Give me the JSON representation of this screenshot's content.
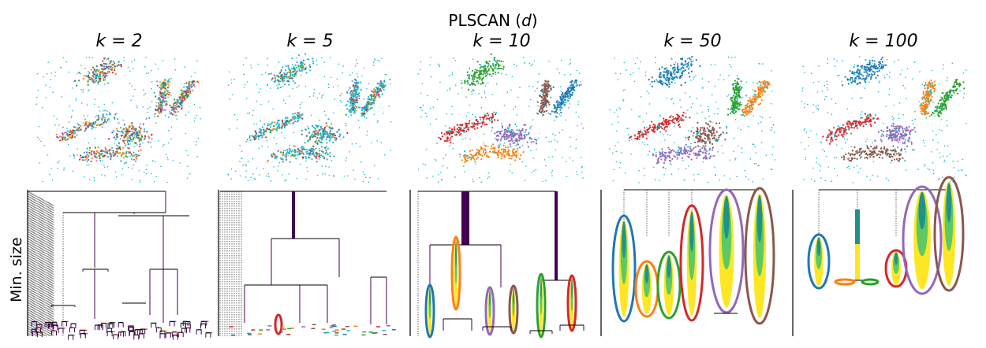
{
  "figure": {
    "title_prefix": "PLSCAN (",
    "title_var": "d",
    "title_suffix": ")",
    "ylabel": "Min. size"
  },
  "colors": {
    "blue": "#1f77b4",
    "orange": "#ff7f0e",
    "green": "#2ca02c",
    "red": "#d62728",
    "purple": "#9467bd",
    "brown": "#8c564b",
    "pink": "#e377c2",
    "olive": "#bcbd22",
    "cyan": "#17becf",
    "noise": "#17becf",
    "tree_dark": "#440154",
    "tree_mid": "#21918c",
    "tree_light": "#5ec962",
    "tree_yellow": "#fde725"
  },
  "panels": [
    {
      "k_label": "k = 2",
      "k": 2,
      "clusters": 14,
      "labels": [
        "blue",
        "orange",
        "green",
        "red",
        "purple",
        "brown",
        "pink",
        "olive"
      ]
    },
    {
      "k_label": "k = 5",
      "k": 5,
      "clusters": 9,
      "labels": [
        "blue",
        "orange",
        "green",
        "red",
        "purple",
        "brown"
      ]
    },
    {
      "k_label": "k = 10",
      "k": 10,
      "clusters": 6,
      "labels": [
        "blue",
        "orange",
        "green",
        "red",
        "purple",
        "brown"
      ]
    },
    {
      "k_label": "k = 50",
      "k": 50,
      "clusters": 6,
      "labels": [
        "blue",
        "orange",
        "green",
        "red",
        "purple",
        "brown"
      ]
    },
    {
      "k_label": "k = 100",
      "k": 100,
      "clusters": 6,
      "labels": [
        "blue",
        "orange",
        "green",
        "red",
        "purple",
        "brown"
      ]
    }
  ]
}
